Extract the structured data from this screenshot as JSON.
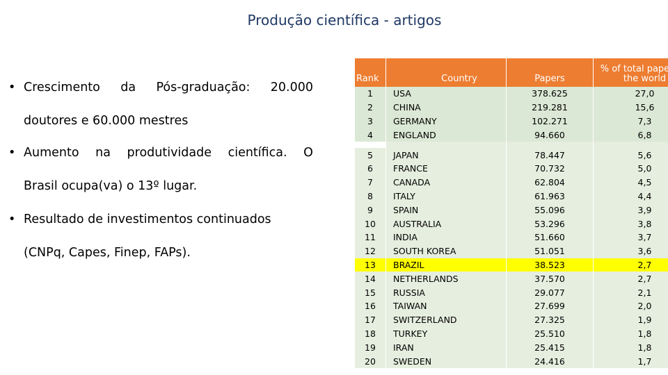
{
  "slide": {
    "title": "Produção científica - artigos",
    "bullets": [
      {
        "line1": [
          "Crescimento",
          "da",
          "Pós-graduação:",
          "20.000"
        ],
        "line2": "doutores e 60.000 mestres"
      },
      {
        "line1": [
          "Aumento",
          "na",
          "produtividade",
          "científica.",
          "O"
        ],
        "line2": "Brasil ocupa(va) o 13º lugar."
      },
      {
        "line1": [
          "Resultado de investimentos continuados"
        ],
        "line2": "(CNPq, Capes, Finep, FAPs)."
      }
    ]
  },
  "table": {
    "headers": {
      "rank": "Rank",
      "country": "Country",
      "papers": "Papers",
      "pct": "% of total papers in the world"
    },
    "rows": [
      {
        "rank": "1",
        "country": "USA",
        "papers": "378.625",
        "pct": "27,0"
      },
      {
        "rank": "2",
        "country": "CHINA",
        "papers": "219.281",
        "pct": "15,6"
      },
      {
        "rank": "3",
        "country": "GERMANY",
        "papers": "102.271",
        "pct": "7,3"
      },
      {
        "rank": "4",
        "country": "ENGLAND",
        "papers": "94.660",
        "pct": "6,8"
      },
      {
        "rank": "5",
        "country": "JAPAN",
        "papers": "78.447",
        "pct": "5,6"
      },
      {
        "rank": "6",
        "country": "FRANCE",
        "papers": "70.732",
        "pct": "5,0"
      },
      {
        "rank": "7",
        "country": "CANADA",
        "papers": "62.804",
        "pct": "4,5"
      },
      {
        "rank": "8",
        "country": "ITALY",
        "papers": "61.963",
        "pct": "4,4"
      },
      {
        "rank": "9",
        "country": "SPAIN",
        "papers": "55.096",
        "pct": "3,9"
      },
      {
        "rank": "10",
        "country": "AUSTRALIA",
        "papers": "53.296",
        "pct": "3,8"
      },
      {
        "rank": "11",
        "country": "INDIA",
        "papers": "51.660",
        "pct": "3,7"
      },
      {
        "rank": "12",
        "country": "SOUTH KOREA",
        "papers": "51.051",
        "pct": "3,6"
      },
      {
        "rank": "13",
        "country": "BRAZIL",
        "papers": "38.523",
        "pct": "2,7"
      },
      {
        "rank": "14",
        "country": "NETHERLANDS",
        "papers": "37.570",
        "pct": "2,7"
      },
      {
        "rank": "15",
        "country": "RUSSIA",
        "papers": "29.077",
        "pct": "2,1"
      },
      {
        "rank": "16",
        "country": "TAIWAN",
        "papers": "27.699",
        "pct": "2,0"
      },
      {
        "rank": "17",
        "country": "SWITZERLAND",
        "papers": "27.325",
        "pct": "1,9"
      },
      {
        "rank": "18",
        "country": "TURKEY",
        "papers": "25.510",
        "pct": "1,8"
      },
      {
        "rank": "19",
        "country": "IRAN",
        "papers": "25.415",
        "pct": "1,8"
      },
      {
        "rank": "20",
        "country": "SWEDEN",
        "papers": "24.416",
        "pct": "1,7"
      }
    ],
    "highlight_rank": "13"
  },
  "colors": {
    "title": "#1f3864",
    "header_bg": "#ed7d31",
    "row_bg": "#e6eedf",
    "highlight_bg": "#ffff00"
  }
}
